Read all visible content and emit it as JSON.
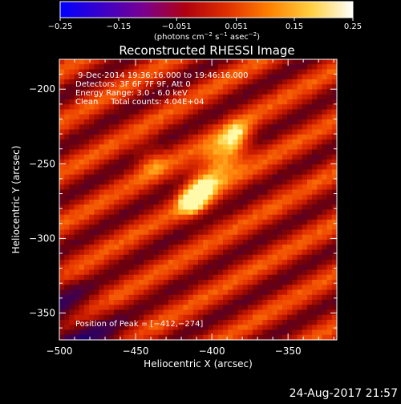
{
  "chart_data": {
    "type": "heatmap",
    "title": "Reconstructed RHESSI Image",
    "xlabel": "Heliocentric X (arcsec)",
    "ylabel": "Heliocentric Y (arcsec)",
    "xlim": [
      -500,
      -318
    ],
    "ylim": [
      -368,
      -180
    ],
    "x_ticks": [
      -500,
      -450,
      -400,
      -350
    ],
    "y_ticks": [
      -200,
      -250,
      -300,
      -350
    ],
    "x_tick_labels": [
      "−500",
      "−450",
      "−400",
      "−350"
    ],
    "y_tick_labels": [
      "−200",
      "−250",
      "−300",
      "−350"
    ],
    "colorbar": {
      "range": [
        -0.25,
        0.25
      ],
      "ticks": [
        -0.25,
        -0.15,
        -0.051,
        0.051,
        0.15,
        0.25
      ],
      "tick_labels": [
        "−0.25",
        "−0.15",
        "−0.051",
        "0.051",
        "0.15",
        "0.25"
      ],
      "label_parts": [
        "(photons cm",
        "−2",
        " s",
        "−1",
        " asec",
        "−2",
        ")"
      ],
      "colors": [
        "#0000ff",
        "#3a00c8",
        "#7a0090",
        "#b00010",
        "#e03000",
        "#ff8000",
        "#ffd040",
        "#ffffff"
      ]
    },
    "info_lines": [
      " 9-Dec-2014 19:36:16.000 to 19:46:16.000",
      "Detectors: 3F 6F 7F 9F, Att 0",
      "Energy Range: 3.0 - 6.0 keV",
      "Clean     Total counts: 4.04E+04"
    ],
    "peak_label": "Position of Peak = [−412,−274]",
    "peak": [
      -412,
      -274
    ],
    "grid_cells": [
      56,
      56
    ],
    "source_track": [
      {
        "x": -413,
        "y": -274,
        "value": 0.25
      },
      {
        "x": -406,
        "y": -262,
        "value": 0.2
      },
      {
        "x": -397,
        "y": -250,
        "value": 0.18
      },
      {
        "x": -388,
        "y": -242,
        "value": 0.18
      },
      {
        "x": -382,
        "y": -232,
        "value": 0.16
      },
      {
        "x": -440,
        "y": -248,
        "value": 0.1
      }
    ]
  },
  "footer": {
    "timestamp": "24-Aug-2017 21:57"
  }
}
